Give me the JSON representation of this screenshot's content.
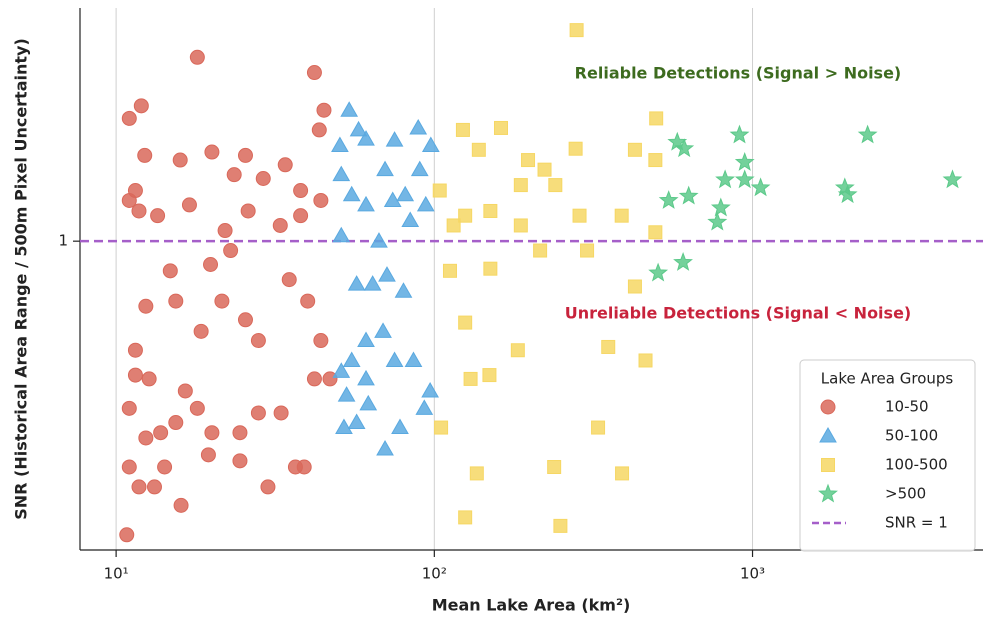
{
  "chart_data": {
    "type": "scatter",
    "x_label": "Mean Lake Area (km²)",
    "y_label": "SNR (Historical Area Range / 500m Pixel Uncertainty)",
    "xlog": true,
    "ylog": true,
    "xlim": [
      7.7,
      5300
    ],
    "ylim": [
      0.184,
      3.59
    ],
    "xticks": [
      {
        "value": 10,
        "label": "10¹"
      },
      {
        "value": 100,
        "label": "10²"
      },
      {
        "value": 1000,
        "label": "10³"
      }
    ],
    "yticks": [
      1
    ],
    "grid": "x",
    "legend_title": "Lake Area Groups",
    "legend": "lower right",
    "hline": {
      "value": 1,
      "label": "SNR = 1",
      "color": "#a55fc9"
    },
    "annotations": [
      {
        "text": "Reliable Detections (Signal > Noise)",
        "color": "#3d6b1f",
        "x": 900,
        "y": 2.5
      },
      {
        "text": "Unreliable Detections (Signal < Noise)",
        "color": "#c8233c",
        "x": 900,
        "y": 0.67
      }
    ],
    "series": [
      {
        "name": "10-50",
        "color": "#d9685a",
        "marker": "circle",
        "x": [
          10.8,
          16,
          18,
          11,
          12,
          12.3,
          11,
          11.5,
          11.8,
          13.5,
          15.9,
          20,
          25.5,
          23.5,
          29,
          34,
          42,
          45,
          43.5,
          44,
          38,
          26,
          17,
          22,
          14.8,
          12.4,
          11.5,
          11,
          12.7,
          15.4,
          18.5,
          21.5,
          25.5,
          28,
          35,
          40,
          44,
          47,
          42,
          33,
          28,
          24.5,
          20,
          18,
          15.4,
          13.8,
          12.4,
          11,
          11.8,
          14.2,
          19.5,
          24.5,
          30,
          39,
          36.6,
          13.2,
          11.5,
          16.5,
          19.8,
          22.9,
          32.8,
          38
        ],
        "values": [
          0.2,
          0.235,
          2.74,
          1.96,
          2.1,
          1.6,
          1.25,
          1.32,
          1.18,
          1.15,
          1.56,
          1.63,
          1.6,
          1.44,
          1.41,
          1.52,
          2.52,
          2.05,
          1.84,
          1.25,
          1.15,
          1.18,
          1.22,
          1.06,
          0.85,
          0.7,
          0.55,
          0.4,
          0.47,
          0.72,
          0.61,
          0.72,
          0.65,
          0.58,
          0.81,
          0.72,
          0.58,
          0.47,
          0.47,
          0.39,
          0.39,
          0.35,
          0.35,
          0.4,
          0.37,
          0.35,
          0.34,
          0.29,
          0.26,
          0.29,
          0.31,
          0.3,
          0.26,
          0.29,
          0.29,
          0.26,
          0.48,
          0.44,
          0.88,
          0.95,
          1.09,
          1.32
        ]
      },
      {
        "name": "50-100",
        "color": "#5aa9e0",
        "marker": "triangle",
        "x": [
          54,
          50.5,
          51,
          57.8,
          61,
          70,
          75,
          89,
          97.5,
          90,
          81,
          74,
          61,
          55,
          51,
          67,
          84,
          94,
          57,
          64,
          71,
          80,
          69,
          61,
          55,
          51,
          61,
          75,
          86,
          97,
          53,
          57,
          62,
          78,
          93,
          70,
          52
        ],
        "values": [
          2.05,
          1.69,
          1.44,
          1.84,
          1.75,
          1.48,
          1.74,
          1.86,
          1.69,
          1.48,
          1.29,
          1.25,
          1.22,
          1.29,
          1.03,
          1.0,
          1.12,
          1.22,
          0.79,
          0.79,
          0.83,
          0.76,
          0.61,
          0.58,
          0.52,
          0.49,
          0.47,
          0.52,
          0.52,
          0.44,
          0.43,
          0.37,
          0.41,
          0.36,
          0.4,
          0.32,
          0.36
        ]
      },
      {
        "name": "100-500",
        "color": "#f6d764",
        "marker": "square",
        "x": [
          280,
          123,
          138,
          162,
          197,
          222,
          278,
          427,
          498,
          495,
          240,
          187,
          150,
          125,
          104,
          115,
          187,
          286,
          388,
          495,
          215,
          302,
          112,
          150,
          125,
          183,
          352,
          461,
          427,
          130,
          149,
          105,
          327,
          136,
          238,
          389,
          125,
          249
        ],
        "values": [
          3.18,
          1.84,
          1.65,
          1.86,
          1.56,
          1.48,
          1.66,
          1.65,
          1.96,
          1.56,
          1.36,
          1.36,
          1.18,
          1.15,
          1.32,
          1.09,
          1.09,
          1.15,
          1.15,
          1.05,
          0.95,
          0.95,
          0.85,
          0.86,
          0.64,
          0.55,
          0.56,
          0.52,
          0.78,
          0.47,
          0.48,
          0.36,
          0.36,
          0.28,
          0.29,
          0.28,
          0.22,
          0.21
        ]
      },
      {
        "name": ">500",
        "color": "#5cc98a",
        "marker": "star",
        "x": [
          580,
          610,
          910,
          945,
          820,
          945,
          1060,
          545,
          630,
          795,
          775,
          505,
          605,
          2300,
          1950,
          1990,
          4250
        ],
        "values": [
          1.72,
          1.66,
          1.79,
          1.54,
          1.4,
          1.4,
          1.34,
          1.25,
          1.28,
          1.2,
          1.11,
          0.84,
          0.89,
          1.79,
          1.34,
          1.29,
          1.4
        ]
      }
    ]
  }
}
